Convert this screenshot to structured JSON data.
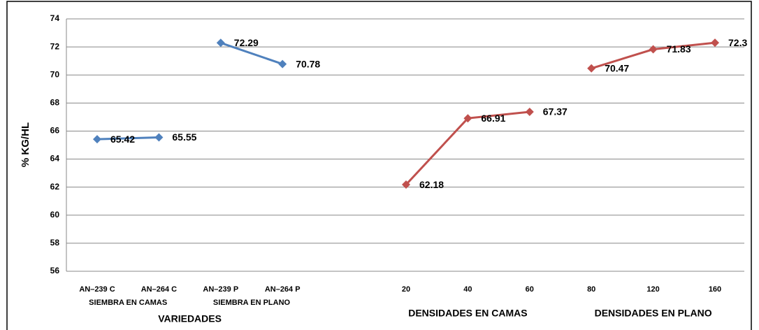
{
  "chart_data": {
    "type": "line",
    "y_label": "% KG/HL",
    "categories": [
      "AN–239 C",
      "AN–264 C",
      "AN–239 P",
      "AN–264 P",
      null,
      "20",
      "40",
      "60",
      "80",
      "120",
      "160"
    ],
    "groups": [
      {
        "label": "SIEMBRA EN CAMAS"
      },
      {
        "label": "SIEMBRA EN PLANO"
      },
      {
        "label": "VARIEDADES"
      },
      {
        "label": "DENSIDADES EN CAMAS"
      },
      {
        "label": "DENSIDADES EN PLANO"
      }
    ],
    "series": [
      {
        "color": "#4f81bd",
        "values": [
          65.42,
          65.55,
          null,
          null,
          null,
          null,
          null,
          null,
          null,
          null,
          null
        ]
      },
      {
        "color": "#4f81bd",
        "values": [
          null,
          null,
          72.29,
          70.78,
          null,
          null,
          null,
          null,
          null,
          null,
          null
        ]
      },
      {
        "color": "#c0504d",
        "values": [
          null,
          null,
          null,
          null,
          null,
          62.18,
          66.91,
          67.37,
          null,
          null,
          null
        ]
      },
      {
        "color": "#c0504d",
        "values": [
          null,
          null,
          null,
          null,
          null,
          null,
          null,
          null,
          70.47,
          71.83,
          72.3
        ]
      }
    ],
    "ylim": [
      56,
      74
    ],
    "yticks": [
      56,
      58,
      60,
      62,
      64,
      66,
      68,
      70,
      72,
      74
    ],
    "grid": true
  }
}
